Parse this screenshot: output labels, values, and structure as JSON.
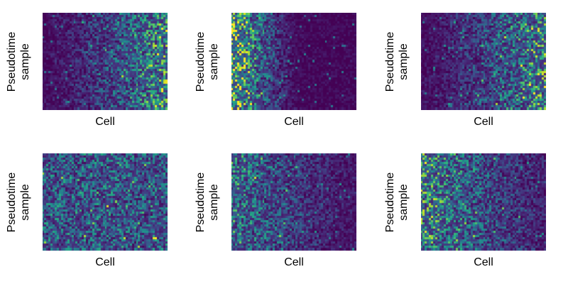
{
  "chart_data": [
    {
      "type": "heatmap",
      "xlabel": "Cell",
      "ylabel_line1": "Pseudotime",
      "ylabel_line2": "sample",
      "cols": 60,
      "rows": 45,
      "pattern": "rising"
    },
    {
      "type": "heatmap",
      "xlabel": "Cell",
      "ylabel_line1": "Pseudotime",
      "ylabel_line2": "sample",
      "cols": 60,
      "rows": 45,
      "pattern": "falling-strong"
    },
    {
      "type": "heatmap",
      "xlabel": "Cell",
      "ylabel_line1": "Pseudotime",
      "ylabel_line2": "sample",
      "cols": 60,
      "rows": 45,
      "pattern": "rising"
    },
    {
      "type": "heatmap",
      "xlabel": "Cell",
      "ylabel_line1": "Pseudotime",
      "ylabel_line2": "sample",
      "cols": 60,
      "rows": 45,
      "pattern": "uniform"
    },
    {
      "type": "heatmap",
      "xlabel": "Cell",
      "ylabel_line1": "Pseudotime",
      "ylabel_line2": "sample",
      "cols": 60,
      "rows": 45,
      "pattern": "falling-mild"
    },
    {
      "type": "heatmap",
      "xlabel": "Cell",
      "ylabel_line1": "Pseudotime",
      "ylabel_line2": "sample",
      "cols": 60,
      "rows": 45,
      "pattern": "falling"
    }
  ],
  "colormap": [
    "#440154",
    "#472c7a",
    "#3b518b",
    "#2c718e",
    "#21908d",
    "#27ad81",
    "#5cc863",
    "#aadc32",
    "#fde725"
  ]
}
